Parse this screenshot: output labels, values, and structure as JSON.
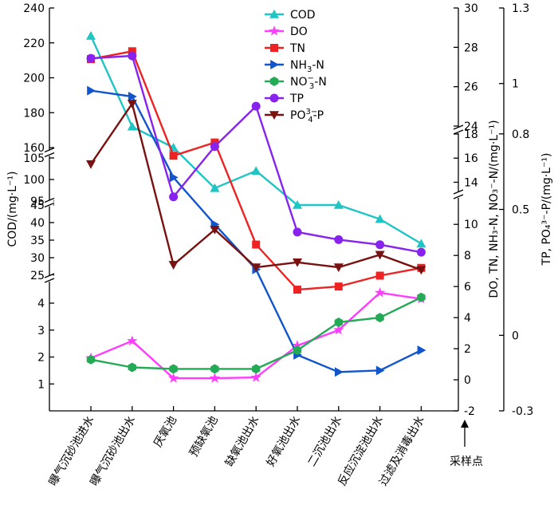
{
  "chart_data": {
    "type": "line",
    "x_axis_label": "采样点",
    "categories": [
      "曝气沉砂池进水",
      "曝气沉砂池出水",
      "厌氧池",
      "预缺氧池",
      "缺氧池出水",
      "好氧池出水",
      "二沉池出水",
      "反应沉淀池出水",
      "过滤及消毒出水"
    ],
    "axes": {
      "left": {
        "label": "COD/(mg·L⁻¹)",
        "segments": [
          {
            "range": [
              0,
              4.8
            ],
            "ticks": [
              1,
              2,
              3,
              4
            ]
          },
          {
            "range": [
              25,
              45
            ],
            "ticks": [
              25,
              30,
              35,
              40,
              45
            ]
          },
          {
            "range": [
              95,
              105
            ],
            "ticks": [
              95,
              100,
              105
            ]
          },
          {
            "range": [
              160,
              240
            ],
            "ticks": [
              160,
              180,
              200,
              220,
              240
            ]
          }
        ]
      },
      "right1": {
        "label": "DO, TN, NH₃-N, NO₃⁻-N/(mg·L⁻¹)",
        "segments": [
          {
            "range": [
              -2,
              11.5
            ],
            "ticks": [
              -2,
              0,
              2,
              4,
              6,
              8,
              10
            ]
          },
          {
            "range": [
              13.5,
              18
            ],
            "ticks": [
              14,
              16,
              18
            ]
          },
          {
            "range": [
              24,
              30
            ],
            "ticks": [
              24,
              26,
              28,
              30
            ]
          }
        ]
      },
      "right2": {
        "label": "TP, PO₄³⁻-P/(mg·L⁻¹)",
        "range": [
          -0.3,
          1.3
        ],
        "ticks": [
          -0.3,
          0,
          0.5,
          0.8,
          1.0,
          1.3
        ]
      }
    },
    "series": [
      {
        "name": "COD",
        "axis": "left",
        "color": "#1fc4c4",
        "marker": "triangle",
        "values": [
          224,
          172,
          160,
          98,
          102,
          45,
          45,
          41,
          34
        ]
      },
      {
        "name": "DO",
        "axis": "right1",
        "color": "#ff3cff",
        "marker": "star",
        "values": [
          1.4,
          2.5,
          0.1,
          0.1,
          0.15,
          2.2,
          3.2,
          5.6,
          5.2
        ]
      },
      {
        "name": "TN",
        "axis": "right1",
        "color": "#ee2222",
        "marker": "square",
        "values": [
          27.4,
          27.8,
          16.2,
          17.3,
          8.7,
          5.8,
          6.0,
          6.7,
          7.2
        ]
      },
      {
        "name": "NH3-N",
        "axis": "right1",
        "color": "#1155cc",
        "marker": "triangle-right",
        "values": [
          25.8,
          25.5,
          14.4,
          10.0,
          7.1,
          1.6,
          0.5,
          0.6,
          1.9
        ]
      },
      {
        "name": "NO3-N",
        "axis": "right1",
        "color": "#22aa55",
        "marker": "hexagon",
        "values": [
          1.3,
          0.8,
          0.7,
          0.7,
          0.7,
          1.9,
          3.7,
          4.0,
          5.3
        ]
      },
      {
        "name": "TP",
        "axis": "right2",
        "color": "#8822ee",
        "marker": "circle",
        "values": [
          1.1,
          1.11,
          0.55,
          0.75,
          0.91,
          0.41,
          0.38,
          0.36,
          0.33
        ]
      },
      {
        "name": "PO4-P",
        "axis": "right2",
        "color": "#7a1111",
        "marker": "triangle-down",
        "values": [
          0.68,
          0.92,
          0.28,
          0.42,
          0.27,
          0.29,
          0.27,
          0.32,
          0.26
        ]
      }
    ]
  },
  "legend": [
    {
      "key": "COD",
      "label": "COD",
      "sub": "",
      "sup": "",
      "tail": ""
    },
    {
      "key": "DO",
      "label": "DO",
      "sub": "",
      "sup": "",
      "tail": ""
    },
    {
      "key": "TN",
      "label": "TN",
      "sub": "",
      "sup": "",
      "tail": ""
    },
    {
      "key": "NH3-N",
      "label": "NH",
      "sub": "3",
      "sup": "",
      "tail": "-N"
    },
    {
      "key": "NO3-N",
      "label": "NO",
      "sub": "3",
      "sup": "−",
      "tail": "-N"
    },
    {
      "key": "TP",
      "label": "TP",
      "sub": "",
      "sup": "",
      "tail": ""
    },
    {
      "key": "PO4-P",
      "label": "PO",
      "sub": "4",
      "sup": "3−",
      "tail": "-P"
    }
  ]
}
